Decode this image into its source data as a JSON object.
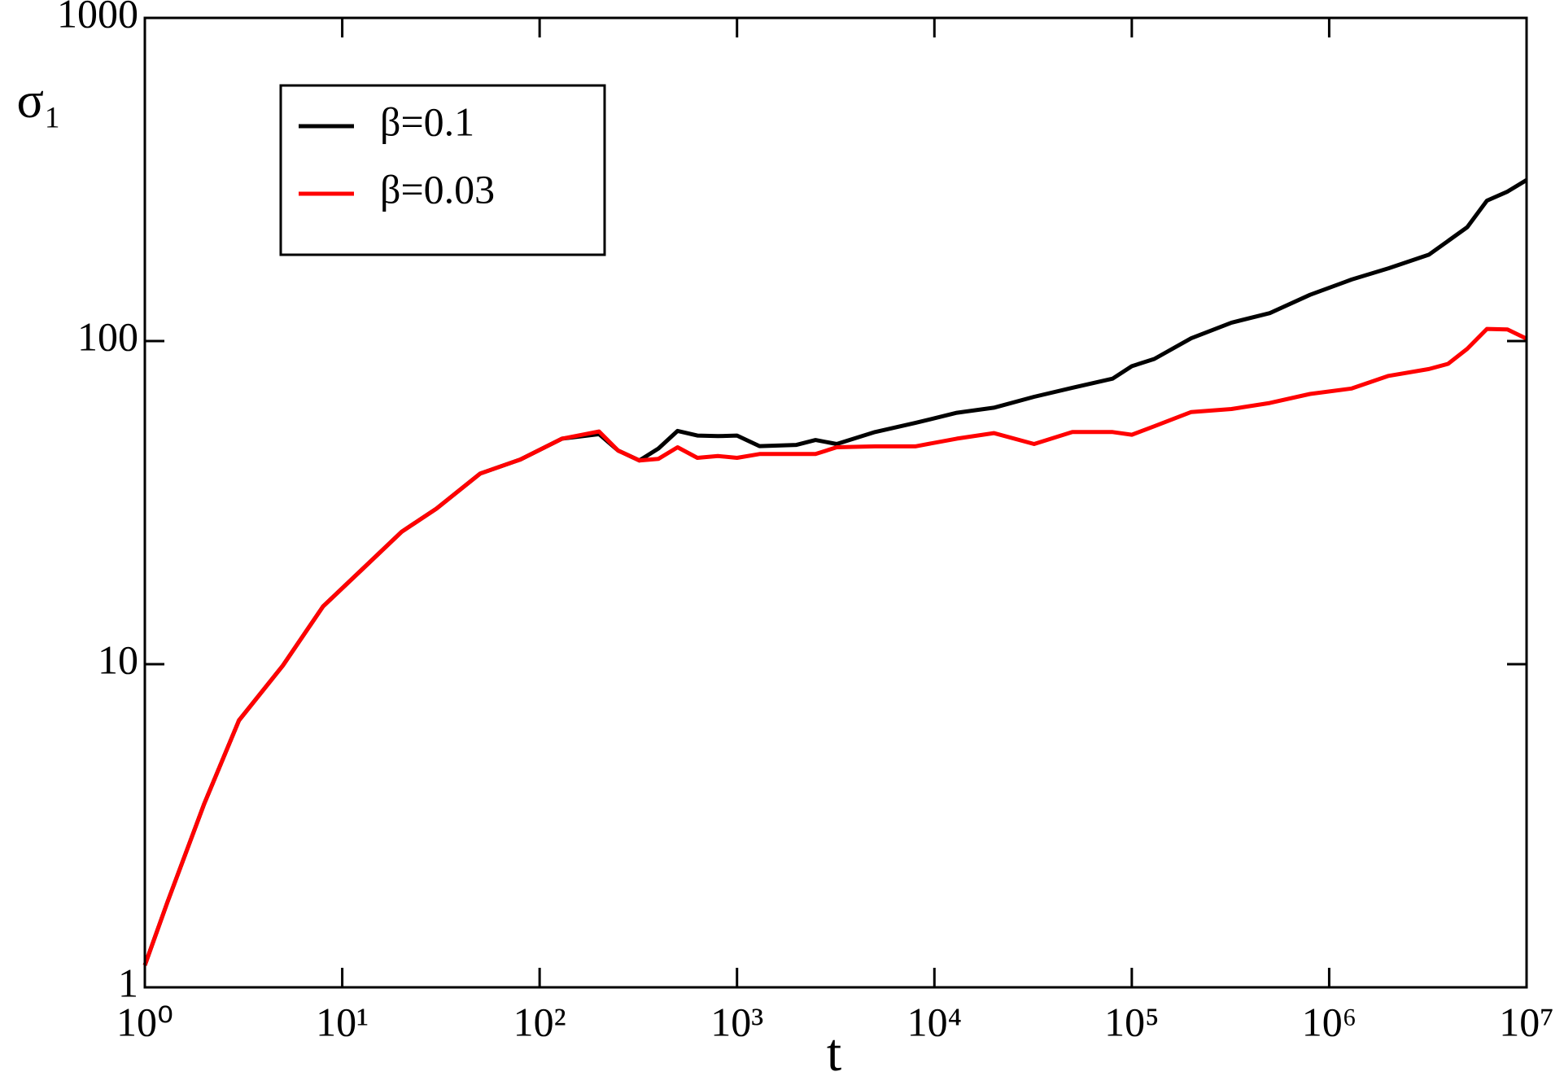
{
  "chart_data": {
    "type": "line",
    "xlabel": "t",
    "ylabel": "σ₁",
    "xscale": "log",
    "yscale": "log",
    "xlim": [
      1,
      10000000
    ],
    "ylim": [
      1,
      1000
    ],
    "xticks": [
      {
        "value": 1,
        "label": "10⁰"
      },
      {
        "value": 10,
        "label": "10¹"
      },
      {
        "value": 100,
        "label": "10²"
      },
      {
        "value": 1000,
        "label": "10³"
      },
      {
        "value": 10000,
        "label": "10⁴"
      },
      {
        "value": 100000,
        "label": "10⁵"
      },
      {
        "value": 1000000,
        "label": "10⁶"
      },
      {
        "value": 10000000,
        "label": "10⁷"
      }
    ],
    "yticks": [
      1,
      10,
      100,
      1000
    ],
    "legend": "upper left",
    "series": [
      {
        "name": "β=0.1",
        "color": "#000000",
        "x": [
          1,
          1.3,
          2,
          3,
          5,
          8,
          13,
          20,
          30,
          50,
          80,
          130,
          200,
          250,
          320,
          400,
          500,
          630,
          800,
          1000,
          1300,
          2000,
          2500,
          3200,
          5000,
          8000,
          13000,
          20000,
          32000,
          50000,
          80000,
          100000,
          130000,
          200000,
          320000,
          500000,
          800000,
          1300000,
          2000000,
          3200000,
          5000000,
          6300000,
          8000000,
          10000000
        ],
        "values": [
          1.17,
          1.83,
          3.7,
          6.7,
          9.9,
          15.1,
          20,
          25.7,
          30.3,
          38.9,
          43,
          49.9,
          51.5,
          45.8,
          42.7,
          46.5,
          52.7,
          51,
          50.8,
          51,
          47.3,
          47.7,
          49.4,
          48,
          52.3,
          55.8,
          60,
          62.2,
          67.2,
          71.7,
          76.5,
          83.6,
          88,
          102,
          114,
          122,
          139,
          155,
          168,
          185,
          225,
          272,
          290,
          315
        ]
      },
      {
        "name": "β=0.03",
        "color": "#ff0000",
        "x": [
          1,
          1.3,
          2,
          3,
          5,
          8,
          13,
          20,
          30,
          50,
          80,
          130,
          200,
          250,
          320,
          400,
          500,
          630,
          800,
          1000,
          1300,
          2000,
          2500,
          3200,
          5000,
          8000,
          13000,
          20000,
          32000,
          50000,
          80000,
          100000,
          130000,
          200000,
          320000,
          500000,
          800000,
          1300000,
          2000000,
          3200000,
          4000000,
          5000000,
          6300000,
          8000000,
          10000000
        ],
        "values": [
          1.17,
          1.83,
          3.7,
          6.7,
          9.9,
          15.1,
          20,
          25.7,
          30.3,
          38.9,
          43,
          49.9,
          52.5,
          45.8,
          42.7,
          43.2,
          46.9,
          43.5,
          44.1,
          43.5,
          44.7,
          44.7,
          44.7,
          46.9,
          47.2,
          47.2,
          49.9,
          51.9,
          48,
          52.3,
          52.3,
          51.3,
          54.5,
          60.3,
          61.6,
          64.3,
          68.6,
          71.3,
          78,
          81.9,
          85,
          94.6,
          109,
          108.6,
          101.7
        ]
      }
    ]
  }
}
